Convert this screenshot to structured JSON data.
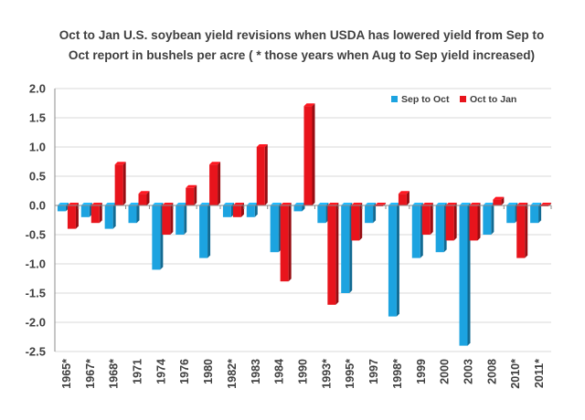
{
  "chart_data": {
    "type": "bar",
    "title_lines": [
      "Oct to Jan U.S. soybean yield revisions when USDA has lowered yield from Sep to",
      "Oct report in bushels per acre ( * those years when Aug to Sep yield increased)"
    ],
    "categories": [
      "1965*",
      "1967*",
      "1968*",
      "1971",
      "1974",
      "1976",
      "1980",
      "1982*",
      "1983",
      "1984",
      "1990",
      "1993*",
      "1995*",
      "1997",
      "1998*",
      "1999",
      "2000",
      "2003",
      "2008",
      "2010*",
      "2011*"
    ],
    "series": [
      {
        "name": "Sep to Oct",
        "color": "#1CA3E0",
        "values": [
          -0.1,
          -0.2,
          -0.4,
          -0.3,
          -1.1,
          -0.5,
          -0.9,
          -0.2,
          -0.2,
          -0.8,
          -0.1,
          -0.3,
          -1.5,
          -0.3,
          -1.9,
          -0.9,
          -0.8,
          -2.4,
          -0.5,
          -0.3,
          -0.3
        ]
      },
      {
        "name": "Oct to Jan",
        "color": "#E8141C",
        "values": [
          -0.4,
          -0.3,
          0.7,
          0.2,
          -0.5,
          0.3,
          0.7,
          -0.2,
          1.0,
          -1.3,
          1.7,
          -1.7,
          -0.6,
          0.0,
          0.2,
          -0.5,
          -0.6,
          -0.6,
          0.1,
          -0.9,
          0.0
        ]
      }
    ],
    "ylim": [
      -2.5,
      2.0
    ],
    "yticks": [
      "2.0",
      "1.5",
      "1.0",
      "0.5",
      "0.0",
      "-0.5",
      "-1.0",
      "-1.5",
      "-2.0",
      "-2.5"
    ],
    "grid": true,
    "legend_position": "top-right"
  }
}
